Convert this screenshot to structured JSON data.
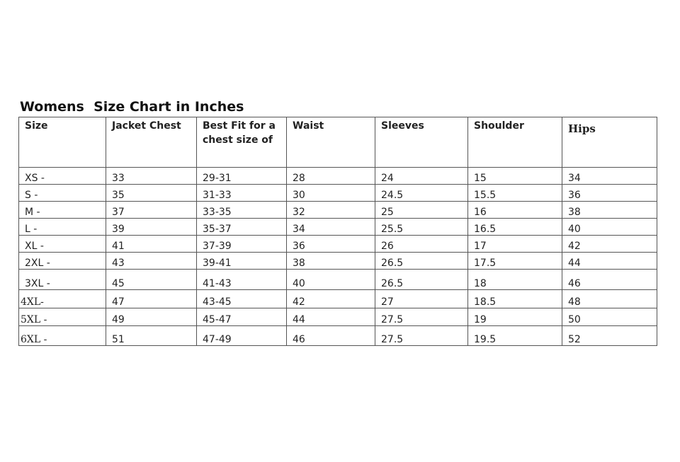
{
  "title": "Womens  Size Chart in Inches",
  "headers": [
    "Size",
    "Jacket Chest",
    "Best Fit for a chest size of",
    "Waist",
    "Sleeves",
    "Shoulder",
    "Hips"
  ],
  "rows": [
    [
      "XS -",
      "33",
      "29-31",
      "28",
      "24",
      "15",
      "34"
    ],
    [
      "S -",
      "35",
      "31-33",
      "30",
      "24.5",
      "15.5",
      "36"
    ],
    [
      "M -",
      "37",
      "33-35",
      "32",
      "25",
      "16",
      "38"
    ],
    [
      "L -",
      "39",
      "35-37",
      "34",
      "25.5",
      "16.5",
      "40"
    ],
    [
      "XL -",
      "41",
      "37-39",
      "36",
      "26",
      "17",
      "42"
    ],
    [
      "2XL -",
      "43",
      "39-41",
      "38",
      "26.5",
      "17.5",
      "44"
    ],
    [
      "3XL -",
      "45",
      "41-43",
      "40",
      "26.5",
      "18",
      "46"
    ],
    [
      "4XL-",
      "47",
      "43-45",
      "42",
      "27",
      "18.5",
      "48"
    ],
    [
      "5XL -",
      "49",
      "45-47",
      "44",
      "27.5",
      "19",
      "50"
    ],
    [
      "6XL -",
      "51",
      "47-49",
      "46",
      "27.5",
      "19.5",
      "52"
    ]
  ]
}
